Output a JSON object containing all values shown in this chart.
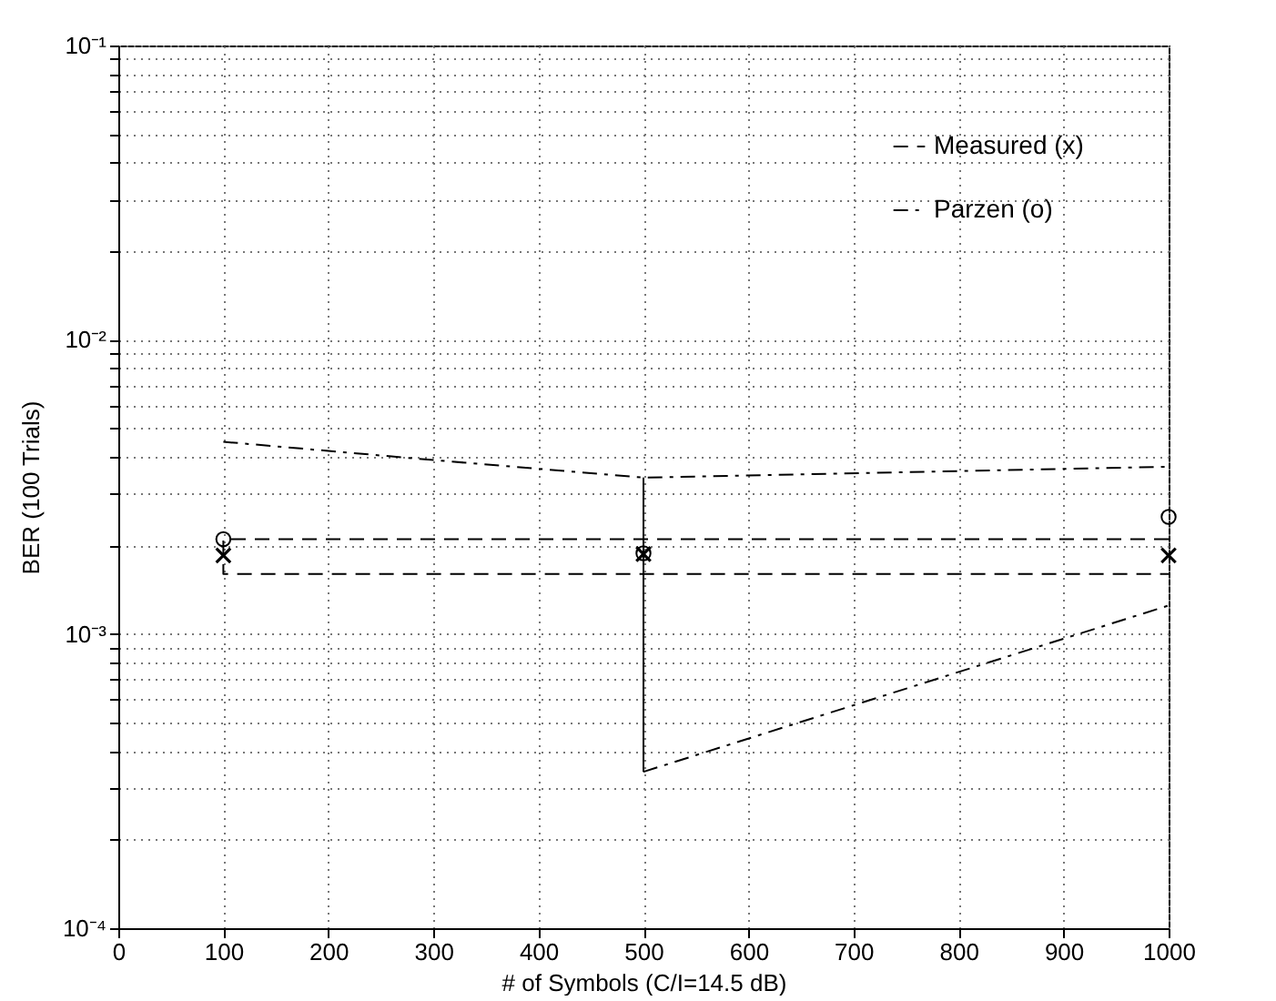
{
  "chart_data": {
    "type": "line",
    "xlabel": "# of Symbols (C/I=14.5 dB)",
    "ylabel": "BER (100 Trials)",
    "log": "y",
    "grid": true,
    "legend": "top right",
    "xlim": [
      0,
      1000
    ],
    "xticks": [
      0,
      100,
      200,
      300,
      400,
      500,
      600,
      700,
      800,
      900,
      1000
    ],
    "ylim": [
      0.0001,
      0.1
    ],
    "yticks": [
      {
        "value": 0.0001,
        "label": "10⁻⁴"
      },
      {
        "value": 0.0002,
        "label": null
      },
      {
        "value": 0.0003,
        "label": null
      },
      {
        "value": 0.0004,
        "label": null
      },
      {
        "value": 0.0005,
        "label": null
      },
      {
        "value": 0.0006,
        "label": null
      },
      {
        "value": 0.0007,
        "label": null
      },
      {
        "value": 0.0008,
        "label": null
      },
      {
        "value": 0.0009,
        "label": null
      },
      {
        "value": 0.001,
        "label": "10⁻³"
      },
      {
        "value": 0.002,
        "label": null
      },
      {
        "value": 0.003,
        "label": null
      },
      {
        "value": 0.004,
        "label": null
      },
      {
        "value": 0.005,
        "label": null
      },
      {
        "value": 0.006,
        "label": null
      },
      {
        "value": 0.007,
        "label": null
      },
      {
        "value": 0.008,
        "label": null
      },
      {
        "value": 0.009,
        "label": null
      },
      {
        "value": 0.01,
        "label": "10⁻²"
      },
      {
        "value": 0.02,
        "label": null
      },
      {
        "value": 0.03,
        "label": null
      },
      {
        "value": 0.04,
        "label": null
      },
      {
        "value": 0.05,
        "label": null
      },
      {
        "value": 0.06,
        "label": null
      },
      {
        "value": 0.07,
        "label": null
      },
      {
        "value": 0.08,
        "label": null
      },
      {
        "value": 0.09,
        "label": null
      },
      {
        "value": 0.1,
        "label": "10⁻¹"
      }
    ],
    "series": [
      {
        "name": "Measured (x)",
        "line_style": "dashed",
        "color": "#000000",
        "x": [
          1000,
          100,
          100,
          1000
        ],
        "values": [
          0.0021,
          0.0021,
          0.0016,
          0.0016
        ]
      },
      {
        "name": "Parzen (o)",
        "line_style": "dashdot",
        "color": "#000000",
        "x": [
          100,
          300,
          500,
          1000
        ],
        "values": [
          0.0045,
          0.0039,
          0.0034,
          0.0037
        ]
      },
      {
        "line_style": "dashdot",
        "color": "#000000",
        "x": [
          500,
          1000
        ],
        "values": [
          0.00034,
          0.00125
        ]
      },
      {
        "line_style": "solid",
        "color": "#000000",
        "x": [
          500,
          500
        ],
        "values": [
          0.0034,
          0.00034
        ]
      },
      {
        "type": "scatter",
        "marker": "cross",
        "color": "#000000",
        "x": [
          100,
          500,
          1000
        ],
        "values": [
          0.00185,
          0.00187,
          0.00185
        ]
      },
      {
        "type": "scatter",
        "marker": "circle",
        "color": "#000000",
        "x": [
          100,
          500,
          1000
        ],
        "values": [
          0.0021,
          0.00188,
          0.0025
        ]
      }
    ]
  }
}
